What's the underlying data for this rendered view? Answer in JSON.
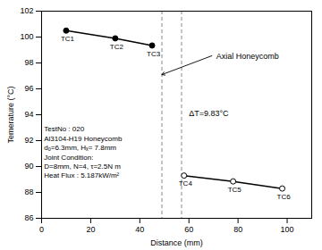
{
  "chart_data": {
    "type": "line",
    "xlabel": "Distance (mm)",
    "ylabel": "Temerature (°C)",
    "xlim": [
      0,
      110
    ],
    "ylim": [
      86,
      102
    ],
    "xticks": [
      0,
      20,
      40,
      60,
      80,
      100
    ],
    "yticks": [
      86,
      88,
      90,
      92,
      94,
      96,
      98,
      100,
      102
    ],
    "grid": false,
    "series": [
      {
        "x": [
          10,
          30,
          45
        ],
        "values": [
          100.5,
          99.9,
          99.35
        ],
        "labels": [
          "TC1",
          "TC2",
          "TC3"
        ],
        "color": "#000000",
        "marker": "filled"
      },
      {
        "x": [
          58,
          78,
          98
        ],
        "values": [
          89.3,
          88.85,
          88.3
        ],
        "labels": [
          "TC4",
          "TC5",
          "TC6"
        ],
        "color": "#000000",
        "marker": "open"
      }
    ],
    "vlines": [
      {
        "x": 49,
        "color": "#888888",
        "line_style": "dashed"
      },
      {
        "x": 57,
        "color": "#888888",
        "line_style": "dashed"
      }
    ],
    "annotations": [
      {
        "text": "Axial Honeycomb",
        "x": 70,
        "y": 98.6,
        "arrow_to": [
          49,
          97.1
        ]
      },
      {
        "text": "ΔT=9.83°C",
        "x": 60,
        "y": 94.5
      },
      {
        "text": "TestNo : 020\nAl3104-H19 Honeycomb\ndₒ=6.3mm, Hₓ= 7.8mm\nJoint Condition:\nD=8mm, N=4, τ=2.5N m\nHeat Flux : 5.187kW/m²",
        "x": 1,
        "y": 93.2
      }
    ]
  }
}
